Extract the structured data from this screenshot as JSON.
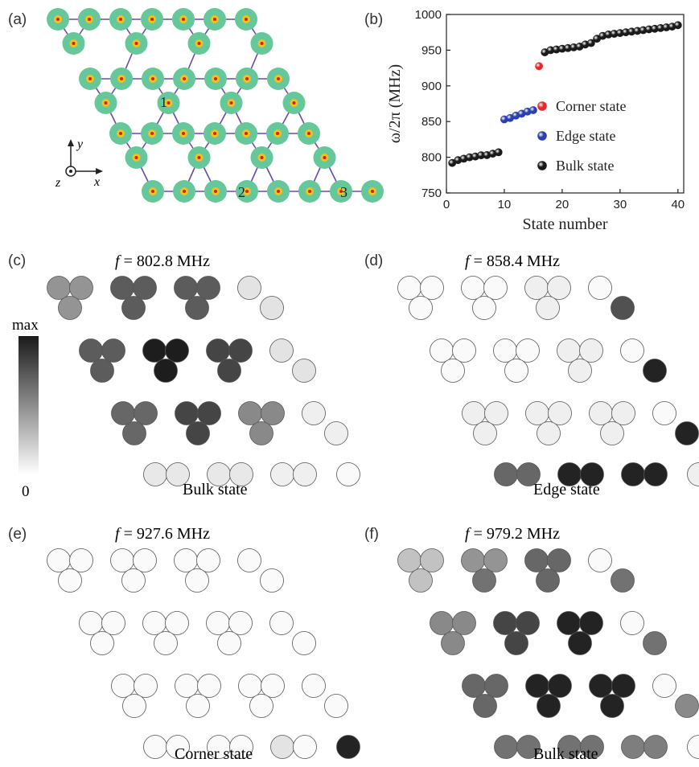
{
  "panels": {
    "a": {
      "label": "(a)",
      "site_labels": [
        "1",
        "2",
        "3"
      ],
      "axes": {
        "x": "x",
        "y": "y",
        "z": "z"
      }
    },
    "b": {
      "label": "(b)"
    },
    "c": {
      "label": "(c)",
      "freq_prefix": "f",
      "freq_value": " = 802.8 MHz",
      "caption": "Bulk state"
    },
    "d": {
      "label": "(d)",
      "freq_prefix": "f",
      "freq_value": " = 858.4 MHz",
      "caption": "Edge state"
    },
    "e": {
      "label": "(e)",
      "freq_prefix": "f",
      "freq_value": " = 927.6 MHz",
      "caption": "Corner state"
    },
    "f": {
      "label": "(f)",
      "freq_prefix": "f",
      "freq_value": " = 979.2 MHz",
      "caption": "Bulk state"
    }
  },
  "colorbar": {
    "max_label": "max",
    "min_label": "0"
  },
  "chart_data": {
    "type": "scatter",
    "xlabel": "State number",
    "ylabel": "ω/2π (MHz)",
    "xlim": [
      0,
      41
    ],
    "ylim": [
      750,
      1000
    ],
    "xticks": [
      0,
      10,
      20,
      30,
      40
    ],
    "yticks": [
      750,
      800,
      850,
      900,
      950,
      1000
    ],
    "legend_position": "right",
    "series": [
      {
        "name": "Corner state",
        "color": "#e8262b",
        "x": [
          16
        ],
        "y": [
          927.6
        ]
      },
      {
        "name": "Edge state",
        "color": "#2b3fae",
        "x": [
          10,
          11,
          12,
          13,
          14,
          15
        ],
        "y": [
          853,
          855,
          858.4,
          861,
          864,
          866
        ]
      },
      {
        "name": "Bulk state",
        "color": "#1a1a1a",
        "x": [
          1,
          2,
          3,
          4,
          5,
          6,
          7,
          8,
          9,
          17,
          18,
          19,
          20,
          21,
          22,
          23,
          24,
          25,
          26,
          27,
          28,
          29,
          30,
          31,
          32,
          33,
          34,
          35,
          36,
          37,
          38,
          39,
          40
        ],
        "y": [
          792,
          796,
          798,
          800,
          801,
          802.8,
          803,
          805,
          807,
          947,
          950,
          951,
          952,
          953,
          954,
          955,
          958,
          960,
          966,
          970,
          972,
          973,
          974,
          975,
          976,
          977,
          978,
          979.2,
          980,
          981,
          982,
          983,
          985
        ]
      }
    ]
  },
  "density_maps": {
    "c": {
      "rows": [
        [
          0.45,
          0.45,
          0.45,
          0.7,
          0.7,
          0.7,
          0.7,
          0.7,
          0.7,
          0.1,
          0.1,
          0.1
        ],
        [
          0.7,
          0.7,
          0.7,
          0.98,
          0.98,
          0.98,
          0.8,
          0.8,
          0.8,
          0.1,
          0.1,
          0.1
        ],
        [
          0.65,
          0.65,
          0.65,
          0.8,
          0.8,
          0.8,
          0.5,
          0.5,
          0.5,
          0.05,
          0.05,
          0.05
        ],
        [
          0.08,
          0.08,
          0.08,
          0.08,
          0.05,
          0.05,
          0.0
        ]
      ]
    },
    "d": {
      "rows": [
        [
          0.0,
          0.0,
          0.0,
          0.0,
          0.0,
          0.0,
          0.05,
          0.05,
          0.05,
          0.0,
          0.65,
          0.75
        ],
        [
          0.0,
          0.0,
          0.0,
          0.0,
          0.0,
          0.0,
          0.05,
          0.05,
          0.05,
          0.0,
          0.95,
          0.95
        ],
        [
          0.05,
          0.05,
          0.05,
          0.05,
          0.05,
          0.05,
          0.05,
          0.05,
          0.05,
          0.0,
          0.95,
          0.95
        ],
        [
          0.65,
          0.65,
          0.95,
          0.95,
          0.95,
          0.95,
          0.05
        ]
      ]
    },
    "e": {
      "rows": [
        [
          0.0,
          0.0,
          0.0,
          0.0,
          0.0,
          0.0,
          0.0,
          0.0,
          0.0,
          0.0,
          0.0,
          0.0
        ],
        [
          0.0,
          0.0,
          0.0,
          0.0,
          0.0,
          0.0,
          0.0,
          0.0,
          0.0,
          0.0,
          0.0,
          0.0
        ],
        [
          0.0,
          0.0,
          0.0,
          0.0,
          0.0,
          0.0,
          0.0,
          0.0,
          0.0,
          0.0,
          0.12,
          0.0
        ],
        [
          0.0,
          0.0,
          0.0,
          0.0,
          0.1,
          0.0,
          0.95
        ]
      ]
    },
    "f": {
      "rows": [
        [
          0.25,
          0.25,
          0.25,
          0.45,
          0.45,
          0.6,
          0.65,
          0.65,
          0.65,
          0.0,
          0.6,
          0.6
        ],
        [
          0.5,
          0.5,
          0.5,
          0.8,
          0.8,
          0.8,
          0.95,
          0.95,
          0.95,
          0.0,
          0.6,
          0.6
        ],
        [
          0.65,
          0.65,
          0.65,
          0.95,
          0.95,
          0.95,
          0.95,
          0.95,
          0.95,
          0.0,
          0.5,
          0.5
        ],
        [
          0.6,
          0.6,
          0.6,
          0.6,
          0.55,
          0.55,
          0.0
        ]
      ]
    }
  },
  "colors": {
    "site_outer": "#66c79a",
    "site_inner": "#f3c21c",
    "site_center": "#d6201f",
    "bond": "#6a4aa6"
  }
}
